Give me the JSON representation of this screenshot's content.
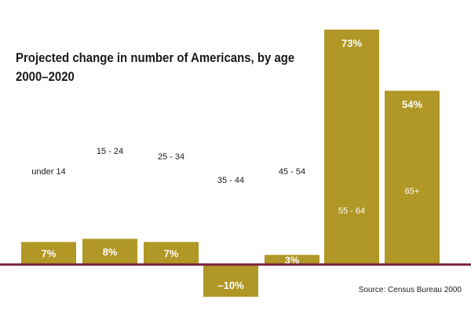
{
  "title_line1": "Projected change in number of Americans, by age",
  "title_line2": "2000–2020",
  "source": "Source: Census Bureau 2000",
  "colors": {
    "bar": "#b19725",
    "baseline": "#7a1f3c"
  },
  "chart_data": {
    "type": "bar",
    "title": "Projected change in number of Americans, by age 2000–2020",
    "categories": [
      "under 14",
      "15 - 24",
      "25 - 34",
      "35 - 44",
      "45 - 54",
      "55 - 64",
      "65+"
    ],
    "values": [
      7,
      8,
      7,
      -10,
      3,
      73,
      54
    ],
    "value_labels": [
      "7%",
      "8%",
      "7%",
      "–10%",
      "3%",
      "73%",
      "54%"
    ],
    "unit": "%",
    "ylim": [
      -12,
      75
    ],
    "grid": false,
    "legend": "none"
  }
}
